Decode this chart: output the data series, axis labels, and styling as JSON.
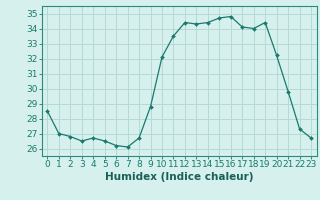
{
  "x": [
    0,
    1,
    2,
    3,
    4,
    5,
    6,
    7,
    8,
    9,
    10,
    11,
    12,
    13,
    14,
    15,
    16,
    17,
    18,
    19,
    20,
    21,
    22,
    23
  ],
  "y": [
    28.5,
    27.0,
    26.8,
    26.5,
    26.7,
    26.5,
    26.2,
    26.1,
    26.7,
    28.8,
    32.1,
    33.5,
    34.4,
    34.3,
    34.4,
    34.7,
    34.8,
    34.1,
    34.0,
    34.4,
    32.2,
    29.8,
    27.3,
    26.7
  ],
  "xlim": [
    -0.5,
    23.5
  ],
  "ylim": [
    25.5,
    35.5
  ],
  "yticks": [
    26,
    27,
    28,
    29,
    30,
    31,
    32,
    33,
    34,
    35
  ],
  "xticks": [
    0,
    1,
    2,
    3,
    4,
    5,
    6,
    7,
    8,
    9,
    10,
    11,
    12,
    13,
    14,
    15,
    16,
    17,
    18,
    19,
    20,
    21,
    22,
    23
  ],
  "xlabel": "Humidex (Indice chaleur)",
  "line_color": "#1a7a6e",
  "marker": "D",
  "marker_size": 2.0,
  "bg_color": "#d6f0ee",
  "grid_color": "#b5d9d5",
  "spine_color": "#2a8a7e",
  "tick_color": "#1a7a6e",
  "label_color": "#1a5f58",
  "xlabel_fontsize": 7.5,
  "tick_fontsize": 6.5
}
